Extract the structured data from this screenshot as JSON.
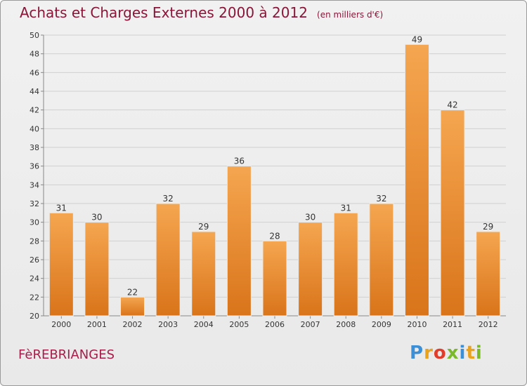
{
  "header": {
    "title": "Achats et Charges Externes 2000 à 2012",
    "unit": "(en milliers d'€)"
  },
  "place": "FèREBRIANGES",
  "logo": {
    "text": "Proxiti",
    "colors": [
      "#3a8fd6",
      "#e8a21c",
      "#e23c2a",
      "#7ab929",
      "#3a8fd6",
      "#e8a21c",
      "#7ab929"
    ]
  },
  "colors": {
    "title": "#8a1538",
    "bar_light": "#f5a650",
    "bar_dark": "#d9741a",
    "grid": "#d0d0d0"
  },
  "chart_data": {
    "type": "bar",
    "categories": [
      "2000",
      "2001",
      "2002",
      "2003",
      "2004",
      "2005",
      "2006",
      "2007",
      "2008",
      "2009",
      "2010",
      "2011",
      "2012"
    ],
    "values": [
      31,
      30,
      22,
      32,
      29,
      36,
      28,
      30,
      31,
      32,
      49,
      42,
      29
    ],
    "ylim": [
      20,
      50
    ],
    "yticks": [
      20,
      22,
      24,
      26,
      28,
      30,
      32,
      34,
      36,
      38,
      40,
      42,
      44,
      46,
      48,
      50
    ],
    "grid": true,
    "title": "Achats et Charges Externes 2000 à 2012",
    "xlabel": "",
    "ylabel": ""
  }
}
